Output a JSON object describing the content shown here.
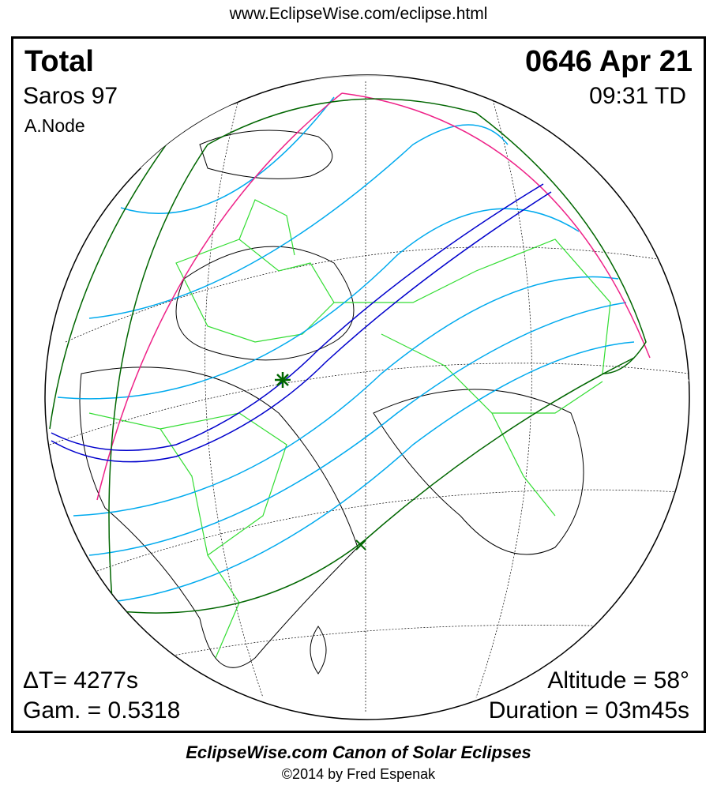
{
  "header": {
    "url": "www.EclipseWise.com/eclipse.html"
  },
  "eclipse": {
    "type": "Total",
    "date": "0646 Apr 21",
    "saros": "Saros  97",
    "time": "09:31 TD",
    "node": "A.Node",
    "delta_t": "ΔT=   4277s",
    "gamma": "Gam. = 0.5318",
    "altitude": "Altitude = 58°",
    "duration": "Duration = 03m45s"
  },
  "colors": {
    "central_path": "#0000cc",
    "penumbral_limits": "#006600",
    "contours": "#00aaee",
    "borders": "#33dd33",
    "rise_set": "#ee2288",
    "night": "#c0c0c0"
  },
  "footer": {
    "title": "EclipseWise.com Canon of Solar Eclipses",
    "copyright": "©2014 by Fred Espenak"
  }
}
